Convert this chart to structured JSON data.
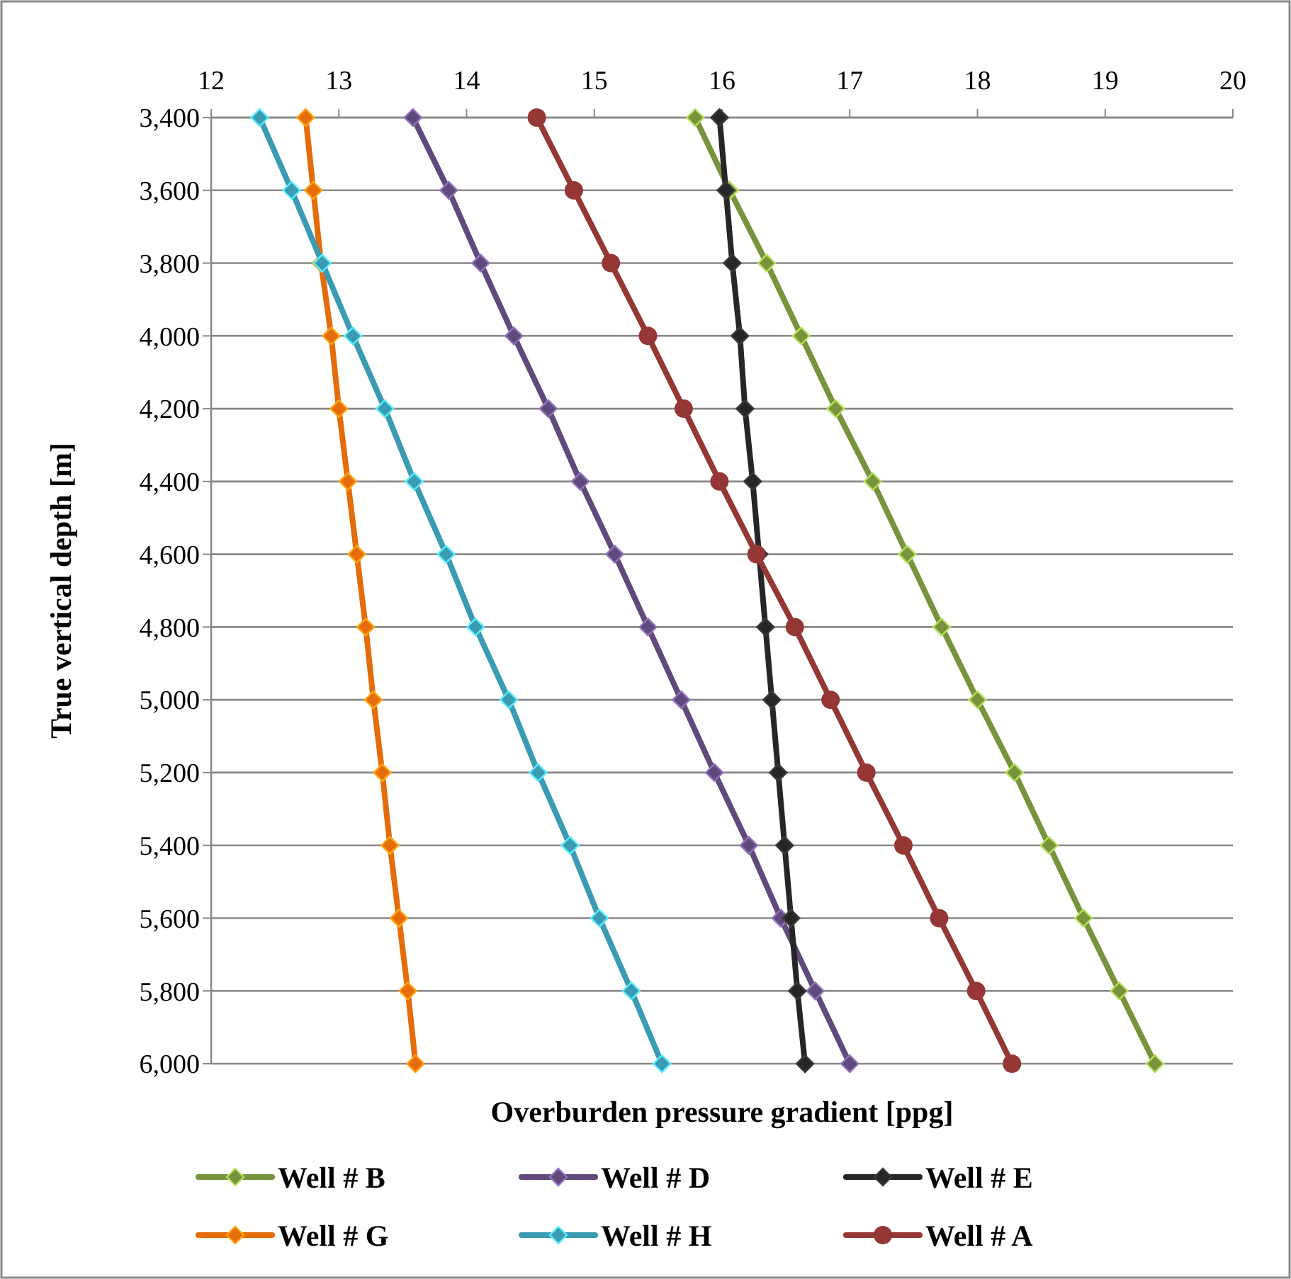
{
  "chart_data": {
    "type": "line",
    "xlabel": "Overburden pressure gradient [ppg]",
    "ylabel": "True vertical depth [m]",
    "xlim": [
      12,
      20
    ],
    "xticks": [
      12,
      13,
      14,
      15,
      16,
      17,
      18,
      19,
      20
    ],
    "ylim": [
      6000,
      3400
    ],
    "yticks": [
      {
        "value": 3400,
        "label": "3,400"
      },
      {
        "value": 3600,
        "label": "3,600"
      },
      {
        "value": 3800,
        "label": "3,800"
      },
      {
        "value": 4000,
        "label": "4,000"
      },
      {
        "value": 4200,
        "label": "4,200"
      },
      {
        "value": 4400,
        "label": "4,400"
      },
      {
        "value": 4600,
        "label": "4,600"
      },
      {
        "value": 4800,
        "label": "4,800"
      },
      {
        "value": 5000,
        "label": "5,000"
      },
      {
        "value": 5200,
        "label": "5,200"
      },
      {
        "value": 5400,
        "label": "5,400"
      },
      {
        "value": 5600,
        "label": "5,600"
      },
      {
        "value": 5800,
        "label": "5,800"
      },
      {
        "value": 6000,
        "label": "6,000"
      }
    ],
    "grid": "y",
    "legend": "bottom",
    "line_style": "solid",
    "series": [
      {
        "name": "Well # B",
        "color": "#77933c",
        "marker": "diamond",
        "x": [
          15.79,
          16.06,
          16.35,
          16.62,
          16.89,
          17.18,
          17.45,
          17.72,
          18.0,
          18.29,
          18.56,
          18.83,
          19.11,
          19.39
        ],
        "values": [
          3400,
          3600,
          3800,
          4000,
          4200,
          4400,
          4600,
          4800,
          5000,
          5200,
          5400,
          5600,
          5800,
          6000
        ]
      },
      {
        "name": "Well # D",
        "color": "#604a7b",
        "marker": "diamond",
        "x": [
          13.58,
          13.86,
          14.11,
          14.37,
          14.64,
          14.89,
          15.16,
          15.42,
          15.68,
          15.94,
          16.21,
          16.46,
          16.73,
          17.0
        ],
        "values": [
          3400,
          3600,
          3800,
          4000,
          4200,
          4400,
          4600,
          4800,
          5000,
          5200,
          5400,
          5600,
          5800,
          6000
        ]
      },
      {
        "name": "Well # E",
        "color": "#262626",
        "marker": "diamond",
        "x": [
          15.98,
          16.03,
          16.08,
          16.14,
          16.18,
          16.24,
          16.29,
          16.34,
          16.39,
          16.44,
          16.49,
          16.54,
          16.59,
          16.65
        ],
        "values": [
          3400,
          3600,
          3800,
          4000,
          4200,
          4400,
          4600,
          4800,
          5000,
          5200,
          5400,
          5600,
          5800,
          6000
        ]
      },
      {
        "name": "Well # G",
        "color": "#e46c0a",
        "marker": "diamond",
        "x": [
          12.74,
          12.8,
          12.86,
          12.94,
          13.0,
          13.07,
          13.14,
          13.21,
          13.27,
          13.34,
          13.4,
          13.47,
          13.54,
          13.6
        ],
        "values": [
          3400,
          3600,
          3800,
          4000,
          4200,
          4400,
          4600,
          4800,
          5000,
          5200,
          5400,
          5600,
          5800,
          6000
        ]
      },
      {
        "name": "Well # H",
        "color": "#3a9bb2",
        "marker": "diamond",
        "x": [
          12.38,
          12.63,
          12.87,
          13.11,
          13.36,
          13.59,
          13.84,
          14.07,
          14.33,
          14.56,
          14.81,
          15.04,
          15.29,
          15.53
        ],
        "values": [
          3400,
          3600,
          3800,
          4000,
          4200,
          4400,
          4600,
          4800,
          5000,
          5200,
          5400,
          5600,
          5800,
          6000
        ]
      },
      {
        "name": "Well # A",
        "color": "#953735",
        "marker": "circle",
        "x": [
          14.55,
          14.84,
          15.13,
          15.42,
          15.7,
          15.98,
          16.27,
          16.57,
          16.85,
          17.13,
          17.42,
          17.7,
          17.99,
          18.27
        ],
        "values": [
          3400,
          3600,
          3800,
          4000,
          4200,
          4400,
          4600,
          4800,
          5000,
          5200,
          5400,
          5600,
          5800,
          6000
        ]
      }
    ]
  }
}
